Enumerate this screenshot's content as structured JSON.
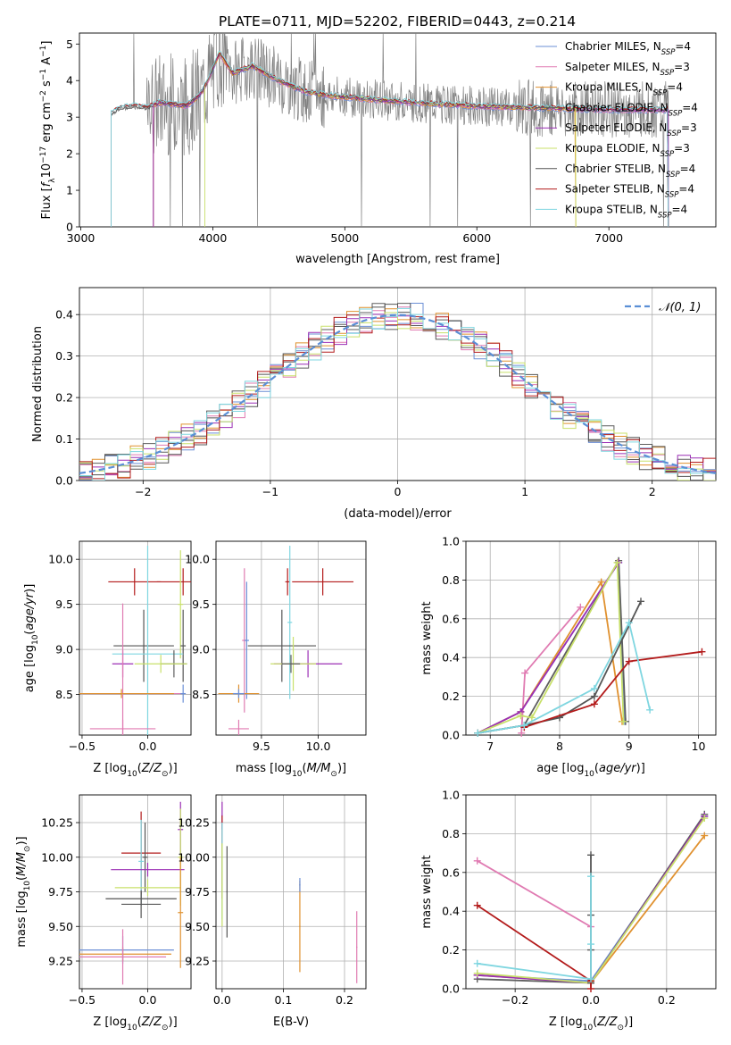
{
  "figure_title": "PLATE=0711, MJD=52202, FIBERID=0443, z=0.214",
  "series_colors": [
    "#6b8fd6",
    "#e07bb2",
    "#e0912f",
    "#5e5e5e",
    "#9b2fb5",
    "#c8e06a",
    "#555555",
    "#b31b1b",
    "#7fd6e0"
  ],
  "chart_data": [
    {
      "id": "spectrum",
      "type": "line",
      "title": "PLATE=0711, MJD=52202, FIBERID=0443, z=0.214",
      "xlabel": "wavelength [Angstrom, rest frame]",
      "xlim": [
        2990,
        7810
      ],
      "ylim": [
        0,
        5.3
      ],
      "xticks": [
        3000,
        4000,
        5000,
        6000,
        7000
      ],
      "yticks": [
        0,
        1,
        2,
        3,
        4,
        5
      ],
      "grid": false,
      "legend_position": "right",
      "legend": [
        {
          "main": "Chabrier MILES, N",
          "sub": "SSP",
          "tail": "=4"
        },
        {
          "main": "Salpeter MILES, N",
          "sub": "SSP",
          "tail": "=3"
        },
        {
          "main": "Kroupa MILES, N",
          "sub": "SSP",
          "tail": "=4"
        },
        {
          "main": "Chabrier ELODIE, N",
          "sub": "SSP",
          "tail": "=4"
        },
        {
          "main": "Salpeter ELODIE, N",
          "sub": "SSP",
          "tail": "=3"
        },
        {
          "main": "Kroupa ELODIE, N",
          "sub": "SSP",
          "tail": "=3"
        },
        {
          "main": "Chabrier STELIB, N",
          "sub": "SSP",
          "tail": "=4"
        },
        {
          "main": "Salpeter STELIB, N",
          "sub": "SSP",
          "tail": "=4"
        },
        {
          "main": "Kroupa STELIB, N",
          "sub": "SSP",
          "tail": "=4"
        }
      ],
      "data_color": "#808080",
      "continuum": [
        [
          3230,
          3.1
        ],
        [
          3300,
          3.25
        ],
        [
          3400,
          3.3
        ],
        [
          3500,
          3.25
        ],
        [
          3600,
          3.4
        ],
        [
          3700,
          3.35
        ],
        [
          3800,
          3.3
        ],
        [
          3900,
          3.6
        ],
        [
          3950,
          3.9
        ],
        [
          4050,
          4.75
        ],
        [
          4150,
          4.2
        ],
        [
          4300,
          4.4
        ],
        [
          4500,
          4.0
        ],
        [
          4700,
          3.7
        ],
        [
          4850,
          3.6
        ],
        [
          5000,
          3.55
        ],
        [
          5500,
          3.4
        ],
        [
          6000,
          3.3
        ],
        [
          6500,
          3.25
        ],
        [
          7000,
          3.2
        ],
        [
          7400,
          3.2
        ]
      ],
      "model_starts": [
        3550,
        3550,
        3550,
        3230,
        3550,
        3940,
        3230,
        3230,
        3230
      ],
      "model_ends": [
        7450,
        7450,
        6750,
        7450,
        7450,
        6750,
        7450,
        7450,
        7450
      ]
    },
    {
      "id": "residuals",
      "type": "histogram",
      "xlabel": "(data-model)/error",
      "ylabel": "Normed distribution",
      "xlim": [
        -2.5,
        2.5
      ],
      "ylim": [
        0,
        0.465
      ],
      "xticks": [
        -2,
        -1,
        0,
        1,
        2
      ],
      "yticks": [
        0.0,
        0.1,
        0.2,
        0.3,
        0.4
      ],
      "grid": true,
      "legend_position": "top-right",
      "reference_curve": {
        "name": "N(0,1)",
        "color": "#5b8fd6",
        "style": "dashed"
      }
    },
    {
      "id": "age-vs-Z",
      "type": "scatter",
      "xlabel": "Z",
      "ylabel": "age",
      "xlim": [
        -0.52,
        0.33
      ],
      "ylim": [
        8.05,
        10.2
      ],
      "xticks": [
        -0.5,
        0.0
      ],
      "yticks": [
        8.5,
        9.0,
        9.5,
        10.0
      ],
      "grid": true,
      "points": [
        {
          "x": 0.27,
          "y": 9.75,
          "xe": 0.2,
          "ye": 0.15,
          "c": 7
        },
        {
          "x": -0.1,
          "y": 9.75,
          "xe": 0.2,
          "ye": 0.15,
          "c": 7
        },
        {
          "x": 0.25,
          "y": 9.5,
          "xe": 0.02,
          "ye": 0.6,
          "c": 5
        },
        {
          "x": -0.03,
          "y": 9.04,
          "xe": 0.23,
          "ye": 0.4,
          "c": 6
        },
        {
          "x": 0.27,
          "y": 9.04,
          "xe": 0.02,
          "ye": 0.4,
          "c": 6
        },
        {
          "x": 0.0,
          "y": 8.95,
          "xe": 0.27,
          "ye": 1.2,
          "c": 8
        },
        {
          "x": 0.2,
          "y": 8.84,
          "xe": 0.1,
          "ye": 0.15,
          "c": 3
        },
        {
          "x": -0.19,
          "y": 8.84,
          "xe": 0.08,
          "ye": 0.15,
          "c": 4
        },
        {
          "x": 0.1,
          "y": 8.84,
          "xe": 0.2,
          "ye": 0.1,
          "c": 5
        },
        {
          "x": -0.19,
          "y": 8.51,
          "xe": 0.45,
          "ye": 1.0,
          "c": 1
        },
        {
          "x": 0.27,
          "y": 8.51,
          "xe": 0.02,
          "ye": 0.1,
          "c": 0
        },
        {
          "x": -0.2,
          "y": 8.51,
          "xe": 0.4,
          "ye": 0.05,
          "c": 2
        },
        {
          "x": -0.19,
          "y": 8.12,
          "xe": 0.25,
          "ye": 0.1,
          "c": 1
        }
      ]
    },
    {
      "id": "age-vs-mass",
      "type": "scatter",
      "xlabel": "mass",
      "ylabel": "",
      "xlim": [
        9.1,
        10.42
      ],
      "ylim": [
        8.05,
        10.2
      ],
      "xticks": [
        9.5,
        10.0
      ],
      "yticks": [
        8.5,
        9.0,
        9.5,
        10.0
      ],
      "grid": true,
      "points": [
        {
          "x": 10.04,
          "y": 9.75,
          "xe": 0.27,
          "ye": 0.15,
          "c": 7
        },
        {
          "x": 9.73,
          "y": 9.75,
          "xe": 0.02,
          "ye": 0.15,
          "c": 7
        },
        {
          "x": 9.35,
          "y": 9.1,
          "xe": 0.02,
          "ye": 0.8,
          "c": 1
        },
        {
          "x": 9.37,
          "y": 9.1,
          "xe": 0.02,
          "ye": 0.65,
          "c": 0
        },
        {
          "x": 9.75,
          "y": 9.3,
          "xe": 0.02,
          "ye": 0.85,
          "c": 8
        },
        {
          "x": 9.68,
          "y": 9.04,
          "xe": 0.3,
          "ye": 0.4,
          "c": 6
        },
        {
          "x": 9.91,
          "y": 8.84,
          "xe": 0.3,
          "ye": 0.15,
          "c": 4
        },
        {
          "x": 9.78,
          "y": 8.84,
          "xe": 0.2,
          "ye": 0.3,
          "c": 5
        },
        {
          "x": 9.76,
          "y": 8.84,
          "xe": 0.08,
          "ye": 0.1,
          "c": 3
        },
        {
          "x": 9.3,
          "y": 8.51,
          "xe": 0.18,
          "ye": 0.1,
          "c": 2
        },
        {
          "x": 9.3,
          "y": 8.51,
          "xe": 0.05,
          "ye": 0.05,
          "c": 0
        },
        {
          "x": 9.3,
          "y": 8.12,
          "xe": 0.09,
          "ye": 0.1,
          "c": 1
        }
      ]
    },
    {
      "id": "massweight-vs-age",
      "type": "line",
      "xlabel": "age",
      "ylabel": "mass weight",
      "xlim": [
        6.65,
        10.25
      ],
      "ylim": [
        0,
        1.0
      ],
      "xticks": [
        7,
        8,
        9,
        10
      ],
      "yticks": [
        0.0,
        0.2,
        0.4,
        0.6,
        0.8,
        1.0
      ],
      "grid": true,
      "series": [
        {
          "color": "#6b8fd6",
          "x": [
            6.82,
            7.44,
            8.85,
            8.94
          ],
          "y": [
            0.01,
            0.12,
            0.89,
            0.07
          ]
        },
        {
          "color": "#e07bb2",
          "x": [
            7.45,
            7.5,
            8.3
          ],
          "y": [
            0.01,
            0.32,
            0.66
          ]
        },
        {
          "color": "#e0912f",
          "x": [
            6.82,
            7.44,
            8.6,
            8.9
          ],
          "y": [
            0.01,
            0.12,
            0.79,
            0.07
          ]
        },
        {
          "color": "#5e5e5e",
          "x": [
            6.82,
            7.49,
            8.85,
            8.95
          ],
          "y": [
            0.01,
            0.05,
            0.9,
            0.07
          ]
        },
        {
          "color": "#9b2fb5",
          "x": [
            6.82,
            7.44,
            8.85
          ],
          "y": [
            0.01,
            0.12,
            0.89
          ]
        },
        {
          "color": "#c8e06a",
          "x": [
            6.82,
            7.44,
            7.6,
            8.83,
            8.92
          ],
          "y": [
            0.01,
            0.1,
            0.09,
            0.89,
            0.07
          ]
        },
        {
          "color": "#555555",
          "x": [
            6.82,
            7.49,
            8.0,
            8.5,
            9.17
          ],
          "y": [
            0.01,
            0.05,
            0.09,
            0.2,
            0.69
          ]
        },
        {
          "color": "#b31b1b",
          "x": [
            7.49,
            8.5,
            9.0,
            10.05
          ],
          "y": [
            0.04,
            0.16,
            0.38,
            0.43
          ]
        },
        {
          "color": "#7fd6e0",
          "x": [
            6.82,
            7.49,
            8.5,
            9.0,
            9.3
          ],
          "y": [
            0.01,
            0.05,
            0.24,
            0.58,
            0.13
          ]
        }
      ]
    },
    {
      "id": "mass-vs-Z",
      "type": "scatter",
      "xlabel": "Z",
      "ylabel": "mass",
      "xlim": [
        -0.52,
        0.33
      ],
      "ylim": [
        9.05,
        10.45
      ],
      "xticks": [
        -0.5,
        0.0
      ],
      "yticks": [
        9.25,
        9.5,
        9.75,
        10.0,
        10.25
      ],
      "grid": true,
      "points": [
        {
          "x": 0.25,
          "y": 10.2,
          "xe": 0.02,
          "ye": 0.2,
          "c": 4
        },
        {
          "x": 0.25,
          "y": 10.0,
          "xe": 0.02,
          "ye": 0.35,
          "c": 5
        },
        {
          "x": -0.05,
          "y": 10.03,
          "xe": 0.15,
          "ye": 0.3,
          "c": 7
        },
        {
          "x": -0.02,
          "y": 10.0,
          "xe": 0.02,
          "ye": 0.25,
          "c": 6
        },
        {
          "x": -0.05,
          "y": 9.97,
          "xe": 0.02,
          "ye": 0.3,
          "c": 8
        },
        {
          "x": 0.0,
          "y": 9.91,
          "xe": 0.28,
          "ye": 0.05,
          "c": 4
        },
        {
          "x": 0.0,
          "y": 9.78,
          "xe": 0.25,
          "ye": 0.06,
          "c": 5
        },
        {
          "x": -0.05,
          "y": 9.7,
          "xe": 0.27,
          "ye": 0.05,
          "c": 6
        },
        {
          "x": -0.05,
          "y": 9.66,
          "xe": 0.15,
          "ye": 0.1,
          "c": 6
        },
        {
          "x": 0.25,
          "y": 9.6,
          "xe": 0.02,
          "ye": 0.4,
          "c": 2
        },
        {
          "x": -0.19,
          "y": 9.33,
          "xe": 0.39,
          "ye": 0.1,
          "c": 0
        },
        {
          "x": -0.19,
          "y": 9.3,
          "xe": 0.37,
          "ye": 0.05,
          "c": 2
        },
        {
          "x": -0.19,
          "y": 9.28,
          "xe": 0.33,
          "ye": 0.2,
          "c": 1
        }
      ]
    },
    {
      "id": "mass-vs-EBV",
      "type": "scatter",
      "xlabel": "E(B-V)",
      "ylabel": "",
      "xlim": [
        -0.01,
        0.235
      ],
      "ylim": [
        9.05,
        10.45
      ],
      "xticks": [
        0.0,
        0.1,
        0.2
      ],
      "yticks": [
        9.25,
        9.5,
        9.75,
        10.0,
        10.25
      ],
      "grid": true,
      "points": [
        {
          "x": 0.0,
          "y": 10.3,
          "xe": 0.001,
          "ye": 0.1,
          "c": 4
        },
        {
          "x": 0.0,
          "y": 10.0,
          "xe": 0.001,
          "ye": 0.3,
          "c": 7
        },
        {
          "x": 0.0,
          "y": 9.9,
          "xe": 0.001,
          "ye": 0.35,
          "c": 8
        },
        {
          "x": 0.0,
          "y": 9.8,
          "xe": 0.001,
          "ye": 0.3,
          "c": 5
        },
        {
          "x": 0.008,
          "y": 9.75,
          "xe": 0.001,
          "ye": 0.33,
          "c": 6
        },
        {
          "x": 0.127,
          "y": 9.5,
          "xe": 0.001,
          "ye": 0.33,
          "c": 2
        },
        {
          "x": 0.127,
          "y": 9.8,
          "xe": 0.001,
          "ye": 0.05,
          "c": 0
        },
        {
          "x": 0.22,
          "y": 9.35,
          "xe": 0.001,
          "ye": 0.26,
          "c": 1
        }
      ]
    },
    {
      "id": "massweight-vs-Z",
      "type": "line",
      "xlabel": "Z",
      "ylabel": "mass weight",
      "xlim": [
        -0.33,
        0.33
      ],
      "ylim": [
        0,
        1.0
      ],
      "xticks": [
        -0.2,
        0.0,
        0.2
      ],
      "yticks": [
        0.0,
        0.2,
        0.4,
        0.6,
        0.8,
        1.0
      ],
      "grid": true,
      "series": [
        {
          "color": "#6b8fd6",
          "x": [
            -0.3,
            0.0,
            0.3
          ],
          "y": [
            0.07,
            0.04,
            0.89
          ]
        },
        {
          "color": "#e07bb2",
          "x": [
            -0.3,
            0.0
          ],
          "y": [
            0.66,
            0.32
          ]
        },
        {
          "color": "#e0912f",
          "x": [
            -0.3,
            0.0,
            0.3
          ],
          "y": [
            0.07,
            0.03,
            0.79
          ]
        },
        {
          "color": "#5e5e5e",
          "x": [
            -0.3,
            0.0,
            0.3
          ],
          "y": [
            0.05,
            0.03,
            0.9
          ]
        },
        {
          "color": "#9b2fb5",
          "x": [
            -0.3,
            0.0,
            0.3
          ],
          "y": [
            0.07,
            0.03,
            0.89
          ]
        },
        {
          "color": "#c8e06a",
          "x": [
            -0.3,
            0.0,
            0.3
          ],
          "y": [
            0.08,
            0.03,
            0.88
          ]
        },
        {
          "color": "#555555",
          "x": [
            0.0,
            0.0,
            0.0,
            0.0
          ],
          "y": [
            0.69,
            0.38,
            0.2,
            0.03
          ]
        },
        {
          "color": "#b31b1b",
          "x": [
            -0.3,
            0.0,
            0.0
          ],
          "y": [
            0.43,
            0.04,
            0.0
          ]
        },
        {
          "color": "#7fd6e0",
          "x": [
            -0.3,
            0.0,
            0.0,
            0.0
          ],
          "y": [
            0.13,
            0.05,
            0.23,
            0.58
          ]
        }
      ]
    }
  ]
}
